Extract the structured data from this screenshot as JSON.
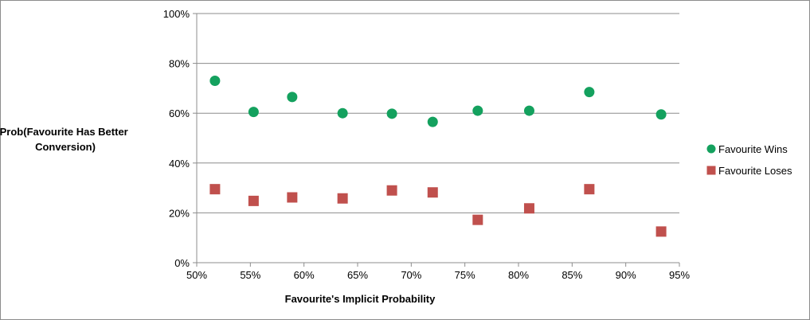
{
  "chart_data": {
    "type": "scatter",
    "title": "",
    "xlabel": "Favourite's Implicit Probability",
    "ylabel_lines": [
      "Prob(Favourite Has Better",
      "Conversion)"
    ],
    "xlim": [
      0.5,
      0.95
    ],
    "ylim": [
      0,
      1.0
    ],
    "x_ticks": [
      0.5,
      0.55,
      0.6,
      0.65,
      0.7,
      0.75,
      0.8,
      0.85,
      0.9,
      0.95
    ],
    "x_tick_labels": [
      "50%",
      "55%",
      "60%",
      "65%",
      "70%",
      "75%",
      "80%",
      "85%",
      "90%",
      "95%"
    ],
    "y_ticks": [
      0,
      0.2,
      0.4,
      0.6,
      0.8,
      1.0
    ],
    "y_tick_labels": [
      "0%",
      "20%",
      "40%",
      "60%",
      "80%",
      "100%"
    ],
    "grid": "horizontal",
    "legend_position": "right",
    "series": [
      {
        "name": "Favourite Wins",
        "marker": "circle",
        "color": "#14A15E",
        "x": [
          0.517,
          0.553,
          0.589,
          0.636,
          0.682,
          0.72,
          0.762,
          0.81,
          0.866,
          0.933
        ],
        "y": [
          0.73,
          0.605,
          0.665,
          0.6,
          0.598,
          0.565,
          0.61,
          0.61,
          0.685,
          0.595
        ]
      },
      {
        "name": "Favourite Loses",
        "marker": "square",
        "color": "#C0504D",
        "x": [
          0.517,
          0.553,
          0.589,
          0.636,
          0.682,
          0.72,
          0.762,
          0.81,
          0.866,
          0.933
        ],
        "y": [
          0.295,
          0.248,
          0.262,
          0.258,
          0.29,
          0.282,
          0.172,
          0.218,
          0.295,
          0.125
        ]
      }
    ]
  }
}
